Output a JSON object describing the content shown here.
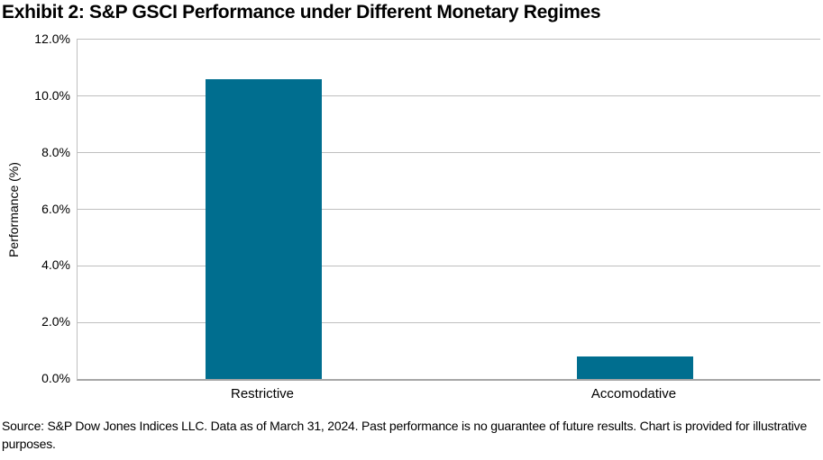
{
  "chart_data": {
    "type": "bar",
    "title": "Exhibit 2: S&P GSCI Performance under Different Monetary Regimes",
    "categories": [
      "Restrictive",
      "Accomodative"
    ],
    "values": [
      10.6,
      0.8
    ],
    "value_unit": "%",
    "xlabel": "",
    "ylabel": "Performance (%)",
    "ylim": [
      0,
      12
    ],
    "ytick_step": 2,
    "ytick_labels": [
      "0.0%",
      "2.0%",
      "4.0%",
      "6.0%",
      "8.0%",
      "10.0%",
      "12.0%"
    ],
    "grid": "horizontal",
    "legend": "none",
    "bar_color": "#006E8F",
    "gridline_color": "#BFBFBF",
    "axis_color": "#A6A6A6"
  },
  "source": {
    "text": "Source: S&P Dow Jones Indices LLC. Data as of March 31, 2024. Past performance is no guarantee of future results. Chart is provided for illustrative purposes."
  }
}
